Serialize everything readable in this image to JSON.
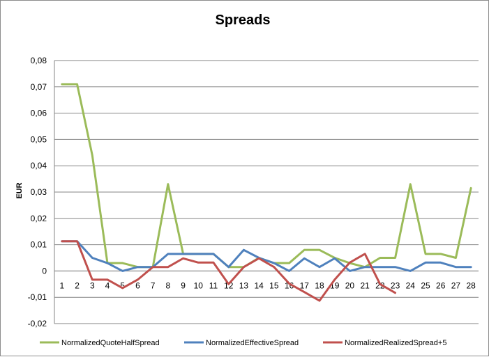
{
  "chart_data": {
    "type": "line",
    "title": "Spreads",
    "xlabel": "",
    "ylabel": "EUR",
    "ylim": [
      -0.02,
      0.08
    ],
    "yticks": [
      "0,08",
      "0,07",
      "0,06",
      "0,05",
      "0,04",
      "0,03",
      "0,02",
      "0,01",
      "0",
      "-0,01",
      "-0,02"
    ],
    "categories": [
      "1",
      "2",
      "3",
      "4",
      "5",
      "6",
      "7",
      "8",
      "9",
      "10",
      "11",
      "12",
      "13",
      "14",
      "15",
      "16",
      "17",
      "18",
      "19",
      "20",
      "21",
      "22",
      "23",
      "24",
      "25",
      "26",
      "27",
      "28"
    ],
    "grid": "horizontal",
    "legend_position": "bottom",
    "series": [
      {
        "name": "NormalizedQuoteHalfSpread",
        "color": "#9bbb59",
        "values": [
          0.071,
          0.071,
          0.044,
          0.003,
          0.003,
          0.0015,
          0.0015,
          0.033,
          0.0065,
          0.0065,
          0.0065,
          0.0015,
          0.0015,
          0.005,
          0.003,
          0.003,
          0.008,
          0.008,
          0.005,
          0.003,
          0.0015,
          0.005,
          0.005,
          0.033,
          0.0065,
          0.0065,
          0.005,
          0.0315
        ]
      },
      {
        "name": "NormalizedEffectiveSpread",
        "color": "#4f81bd",
        "values": [
          0.0113,
          0.0113,
          0.005,
          0.003,
          0.0,
          0.0015,
          0.0015,
          0.0065,
          0.0065,
          0.0065,
          0.0065,
          0.0015,
          0.008,
          0.005,
          0.003,
          0.0,
          0.0048,
          0.0015,
          0.0048,
          0.0,
          0.0015,
          0.0015,
          0.0015,
          0.0,
          0.0032,
          0.0032,
          0.0015,
          0.0015
        ]
      },
      {
        "name": "NormalizedRealizedSpread+5",
        "color": "#c0504d",
        "values": [
          0.0113,
          0.0113,
          -0.0033,
          -0.0033,
          -0.0065,
          -0.0033,
          0.0015,
          0.0015,
          0.0048,
          0.0032,
          0.0032,
          -0.005,
          0.0015,
          0.0048,
          0.0015,
          -0.0048,
          -0.008,
          -0.0113,
          -0.0033,
          0.0032,
          0.0065,
          -0.005,
          -0.0083,
          null,
          null,
          null,
          null,
          null
        ]
      }
    ]
  }
}
